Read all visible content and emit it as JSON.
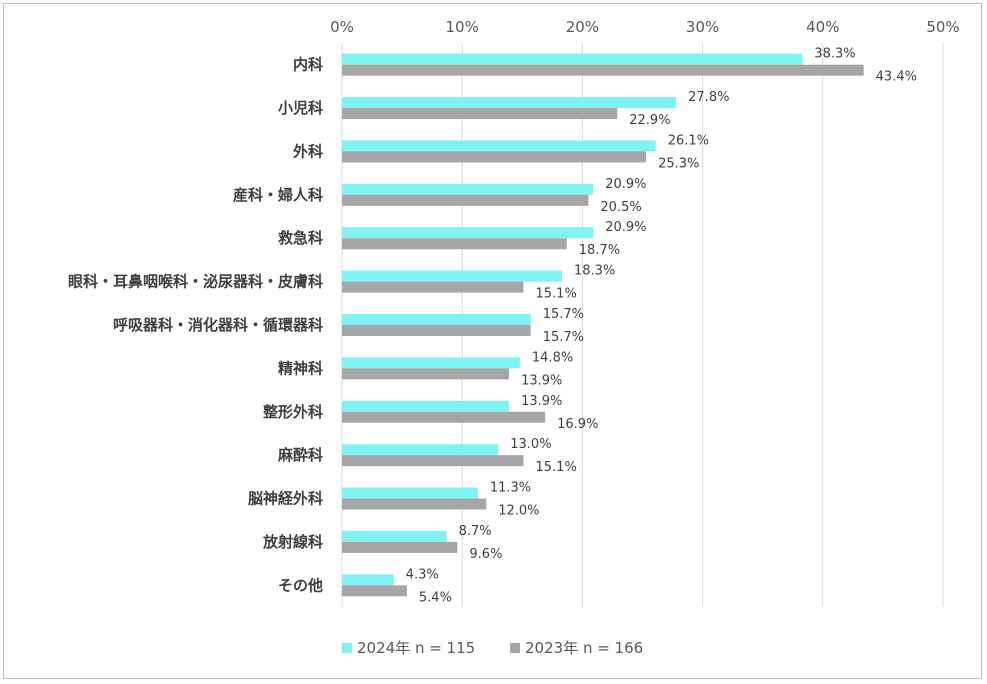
{
  "chart_data": {
    "type": "bar",
    "orientation": "horizontal",
    "categories": [
      "内科",
      "小児科",
      "外科",
      "産科・婦人科",
      "救急科",
      "眼科・耳鼻咽喉科・泌尿器科・皮膚科",
      "呼吸器科・消化器科・循環器科",
      "精神科",
      "整形外科",
      "麻酔科",
      "脳神経外科",
      "放射線科",
      "その他"
    ],
    "series": [
      {
        "name": "2024年 n = 115",
        "color": "#7ff3f3",
        "values": [
          38.3,
          27.8,
          26.1,
          20.9,
          20.9,
          18.3,
          15.7,
          14.8,
          13.9,
          13.0,
          11.3,
          8.7,
          4.3
        ],
        "labels": [
          "38.3%",
          "27.8%",
          "26.1%",
          "20.9%",
          "20.9%",
          "18.3%",
          "15.7%",
          "14.8%",
          "13.9%",
          "13.0%",
          "11.3%",
          "8.7%",
          "4.3%"
        ]
      },
      {
        "name": "2023年 n = 166",
        "color": "#a6a6a6",
        "values": [
          43.4,
          22.9,
          25.3,
          20.5,
          18.7,
          15.1,
          15.7,
          13.9,
          16.9,
          15.1,
          12.0,
          9.6,
          5.4
        ],
        "labels": [
          "43.4%",
          "22.9%",
          "25.3%",
          "20.5%",
          "18.7%",
          "15.1%",
          "15.7%",
          "13.9%",
          "16.9%",
          "15.1%",
          "12.0%",
          "9.6%",
          "5.4%"
        ]
      }
    ],
    "xlim": [
      0,
      50
    ],
    "xticks": [
      "0%",
      "10%",
      "20%",
      "30%",
      "40%",
      "50%"
    ],
    "xtick_values": [
      0,
      10,
      20,
      30,
      40,
      50
    ],
    "x_axis_position": "top",
    "grid": true,
    "legend": "bottom-center"
  },
  "colors": {
    "gridline": "#d9d9d9",
    "border": "#bfbfbf"
  }
}
